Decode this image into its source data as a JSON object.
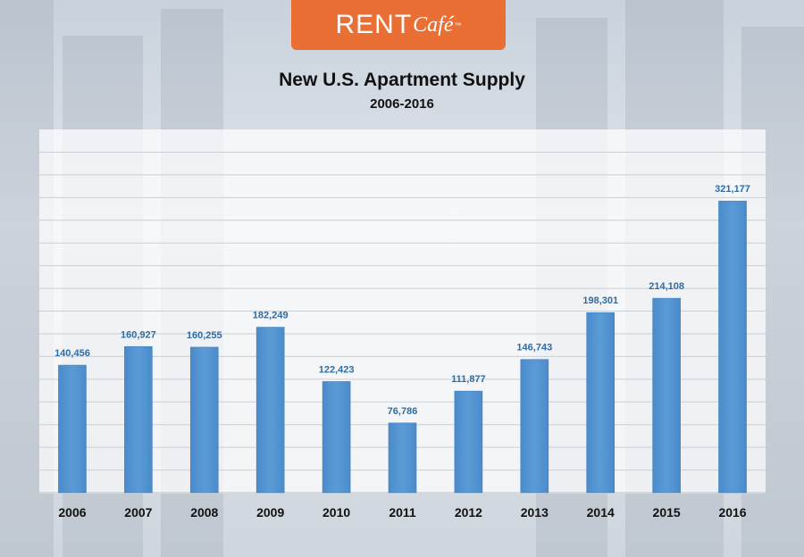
{
  "logo": {
    "brand": "RENT",
    "brand_script": "Café",
    "trademark": "™"
  },
  "chart_data": {
    "type": "bar",
    "title": "New U.S. Apartment Supply",
    "subtitle": "2006-2016",
    "categories": [
      "2006",
      "2007",
      "2008",
      "2009",
      "2010",
      "2011",
      "2012",
      "2013",
      "2014",
      "2015",
      "2016"
    ],
    "values": [
      140456,
      160927,
      160255,
      182249,
      122423,
      76786,
      111877,
      146743,
      198301,
      214108,
      321177
    ],
    "value_labels": [
      "140,456",
      "160,927",
      "160,255",
      "182,249",
      "122,423",
      "76,786",
      "111,877",
      "146,743",
      "198,301",
      "214,108",
      "321,177"
    ],
    "xlabel": "",
    "ylabel": "",
    "ylim": [
      0,
      400000
    ],
    "grid": true,
    "legend": "none",
    "bar_color": "#5b9bd5",
    "label_color": "#2e6da4"
  }
}
